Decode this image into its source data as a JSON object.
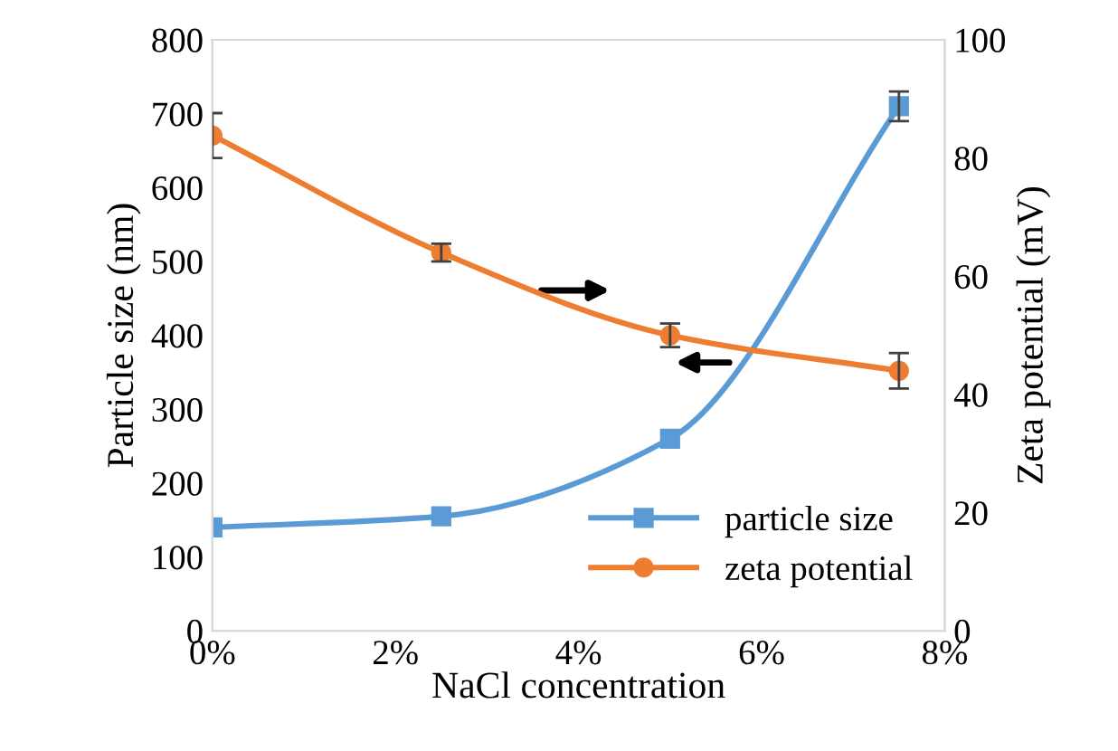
{
  "chart_data": {
    "type": "line",
    "xlabel": "NaCl concentration",
    "ylabel": "Particle size (nm)",
    "y2label": "Zeta potential (mV)",
    "x": [
      0,
      2.5,
      5,
      7.5
    ],
    "series": [
      {
        "name": "particle size",
        "color": "#5b9bd5",
        "values": [
          140,
          155,
          260,
          710
        ],
        "errors": [
          null,
          null,
          null,
          20
        ],
        "marker": "square"
      },
      {
        "name": "zeta potential",
        "color": "#ed7d31",
        "values": [
          83.8,
          64,
          50,
          44
        ],
        "errors": [
          3.8,
          1.5,
          2,
          3
        ],
        "marker": "circle",
        "axis": "y2"
      }
    ],
    "xlim": [
      0,
      8
    ],
    "xticks": [
      {
        "value": 0,
        "label": "0%"
      },
      {
        "value": 2,
        "label": "2%"
      },
      {
        "value": 4,
        "label": "4%"
      },
      {
        "value": 6,
        "label": "6%"
      },
      {
        "value": 8,
        "label": "8%"
      }
    ],
    "ylim": [
      0,
      800
    ],
    "yticks": [
      0,
      100,
      200,
      300,
      400,
      500,
      600,
      700,
      800
    ],
    "y2lim": [
      0,
      100
    ],
    "y2ticks": [
      0,
      20,
      40,
      60,
      80,
      100
    ],
    "grid": false,
    "legend": "bottom right",
    "line_style": "solid"
  }
}
